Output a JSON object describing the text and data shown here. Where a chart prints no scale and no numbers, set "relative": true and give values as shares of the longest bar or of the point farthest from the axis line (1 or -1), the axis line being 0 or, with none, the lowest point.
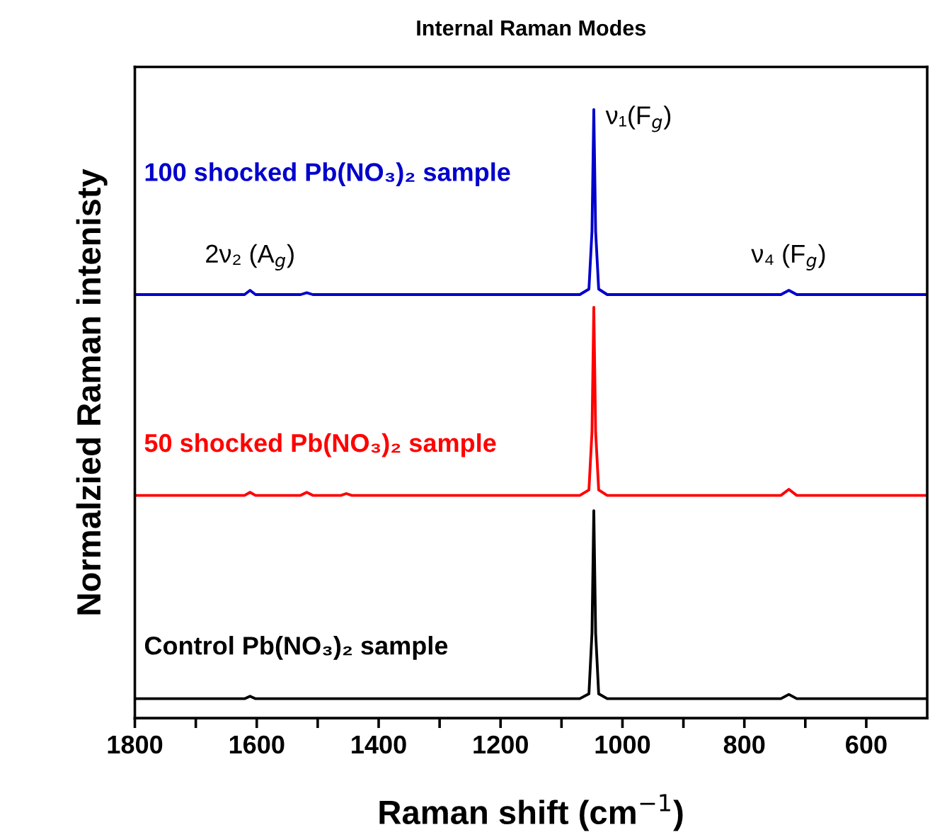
{
  "chart_data": {
    "type": "line",
    "title": "Internal Raman Modes",
    "xlabel": "Raman shift (cm$^{−1}$)",
    "ylabel": "Normalzied Raman intenisty",
    "relative": true,
    "xlim": [
      1800,
      500
    ],
    "xticks": [
      1800,
      {
        "value": 1700,
        "label": null
      },
      1600,
      {
        "value": 1500,
        "label": null
      },
      1400,
      {
        "value": 1300,
        "label": null
      },
      1200,
      {
        "value": 1100,
        "label": null
      },
      1000,
      {
        "value": 900,
        "label": null
      },
      800,
      {
        "value": 700,
        "label": null
      },
      600
    ],
    "grid": false,
    "legend": false,
    "marker": "none",
    "line_style": "solid",
    "series": [
      {
        "name": "Control Pb(NO₃)₂ sample",
        "color": "#000000",
        "x": [
          1800,
          1700,
          1620,
          1611,
          1602,
          1070,
          1055,
          1050,
          1047,
          1044,
          1039,
          1025,
          740,
          727,
          714,
          600,
          500
        ],
        "values": [
          0.032,
          0.032,
          0.032,
          0.036,
          0.032,
          0.032,
          0.04,
          0.14,
          0.341,
          0.14,
          0.04,
          0.032,
          0.032,
          0.039,
          0.032,
          0.032,
          0.032
        ]
      },
      {
        "name": "50 shocked Pb(NO₃)₂ sample",
        "color": "#ff0000",
        "x": [
          1800,
          1700,
          1620,
          1611,
          1602,
          1528,
          1518,
          1508,
          1462,
          1453,
          1444,
          1070,
          1055,
          1050,
          1047,
          1044,
          1039,
          1025,
          740,
          727,
          714,
          600,
          500
        ],
        "values": [
          0.366,
          0.366,
          0.366,
          0.371,
          0.366,
          0.366,
          0.371,
          0.366,
          0.366,
          0.369,
          0.366,
          0.366,
          0.375,
          0.47,
          0.675,
          0.47,
          0.375,
          0.366,
          0.366,
          0.376,
          0.366,
          0.366,
          0.366
        ]
      },
      {
        "name": "100 shocked Pb(NO₃)₂ sample",
        "color": "#0000cc",
        "x": [
          1800,
          1700,
          1620,
          1611,
          1602,
          1528,
          1518,
          1508,
          1070,
          1055,
          1050,
          1047,
          1044,
          1039,
          1025,
          740,
          727,
          714,
          600,
          500
        ],
        "values": [
          0.696,
          0.696,
          0.696,
          0.703,
          0.696,
          0.696,
          0.699,
          0.696,
          0.696,
          0.705,
          0.8,
          1.0,
          0.8,
          0.705,
          0.696,
          0.696,
          0.703,
          0.696,
          0.696,
          0.696
        ]
      }
    ],
    "annotations": [
      {
        "text": "2ν₂ (A$_{g}$)",
        "x": 1611,
        "y": 0.703
      },
      {
        "text": "ν₁(F$_{g}$)",
        "x": 1047,
        "y": 1.0
      },
      {
        "text": "ν₄ (F$_{g}$)",
        "x": 727,
        "y": 0.703
      }
    ]
  }
}
